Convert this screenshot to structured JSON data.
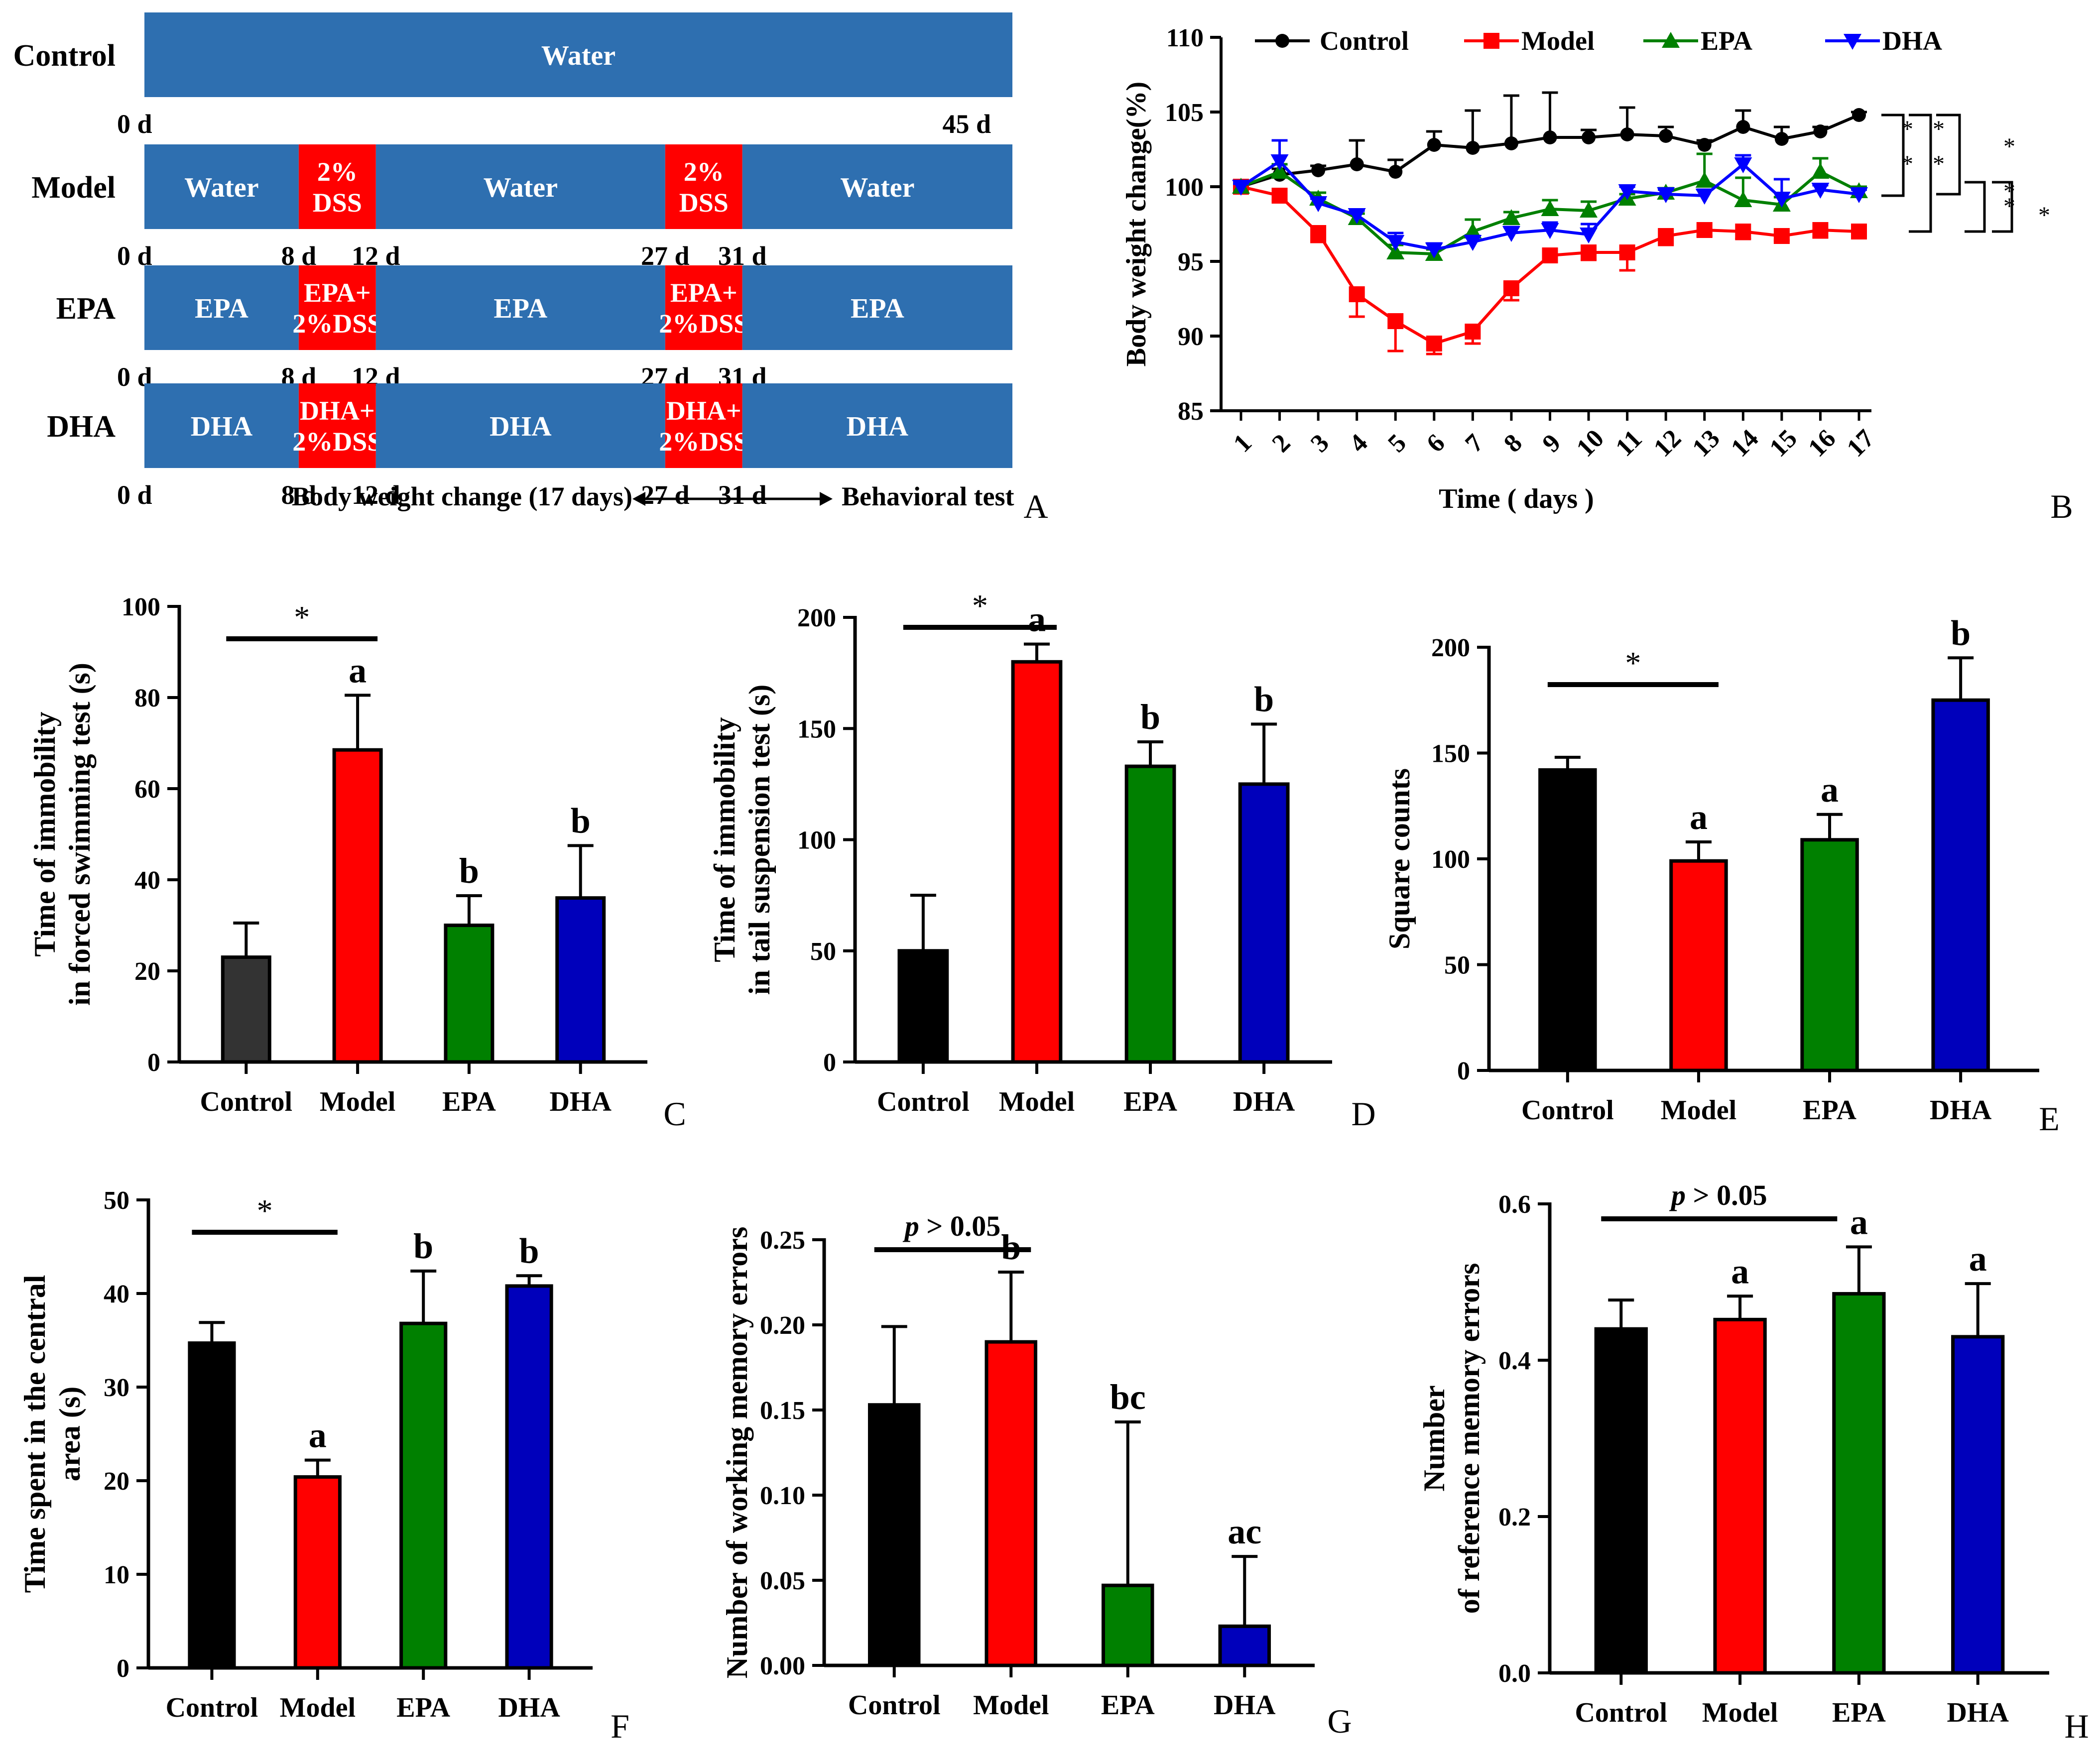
{
  "chart_data": [
    {
      "panel": "A",
      "type": "timeline",
      "note_left": "Body weight change (17 days)",
      "note_right": "Behavioral test",
      "rows": [
        {
          "label": "Control",
          "segments": [
            {
              "text": "Water",
              "color": "#2e6fb0",
              "start": 0,
              "end": 45
            }
          ],
          "ticks": [
            {
              "day": 0,
              "text": "0 d"
            },
            {
              "day": 45,
              "text": "45 d"
            }
          ]
        },
        {
          "label": "Model",
          "segments": [
            {
              "text": "Water",
              "color": "#2e6fb0",
              "start": 0,
              "end": 8
            },
            {
              "text": "2%|DSS",
              "color": "#ff0000",
              "start": 8,
              "end": 12
            },
            {
              "text": "Water",
              "color": "#2e6fb0",
              "start": 12,
              "end": 27
            },
            {
              "text": "2%|DSS",
              "color": "#ff0000",
              "start": 27,
              "end": 31
            },
            {
              "text": "Water",
              "color": "#2e6fb0",
              "start": 31,
              "end": 45
            }
          ],
          "ticks": [
            {
              "day": 0,
              "text": "0 d"
            },
            {
              "day": 8,
              "text": "8 d"
            },
            {
              "day": 12,
              "text": "12 d"
            },
            {
              "day": 27,
              "text": "27 d"
            },
            {
              "day": 31,
              "text": "31 d"
            }
          ]
        },
        {
          "label": "EPA",
          "segments": [
            {
              "text": "EPA",
              "color": "#2e6fb0",
              "start": 0,
              "end": 8
            },
            {
              "text": "EPA+|2%DSS",
              "color": "#ff0000",
              "start": 8,
              "end": 12
            },
            {
              "text": "EPA",
              "color": "#2e6fb0",
              "start": 12,
              "end": 27
            },
            {
              "text": "EPA+|2%DSS",
              "color": "#ff0000",
              "start": 27,
              "end": 31
            },
            {
              "text": "EPA",
              "color": "#2e6fb0",
              "start": 31,
              "end": 45
            }
          ],
          "ticks": [
            {
              "day": 0,
              "text": "0 d"
            },
            {
              "day": 8,
              "text": "8 d"
            },
            {
              "day": 12,
              "text": "12 d"
            },
            {
              "day": 27,
              "text": "27 d"
            },
            {
              "day": 31,
              "text": "31 d"
            }
          ]
        },
        {
          "label": "DHA",
          "segments": [
            {
              "text": "DHA",
              "color": "#2e6fb0",
              "start": 0,
              "end": 8
            },
            {
              "text": "DHA+|2%DSS",
              "color": "#ff0000",
              "start": 8,
              "end": 12
            },
            {
              "text": "DHA",
              "color": "#2e6fb0",
              "start": 12,
              "end": 27
            },
            {
              "text": "DHA+|2%DSS",
              "color": "#ff0000",
              "start": 27,
              "end": 31
            },
            {
              "text": "DHA",
              "color": "#2e6fb0",
              "start": 31,
              "end": 45
            }
          ],
          "ticks": [
            {
              "day": 0,
              "text": "0 d"
            },
            {
              "day": 8,
              "text": "8 d"
            },
            {
              "day": 12,
              "text": "12 d"
            },
            {
              "day": 27,
              "text": "27 d"
            },
            {
              "day": 31,
              "text": "31 d"
            }
          ]
        }
      ]
    },
    {
      "panel": "B",
      "type": "line",
      "xlabel": "Time ( days )",
      "ylabel": "Body weight change(%)",
      "ylim": [
        85,
        110
      ],
      "yticks": [
        85,
        90,
        95,
        100,
        105,
        110
      ],
      "x": [
        1,
        2,
        3,
        4,
        5,
        6,
        7,
        8,
        9,
        10,
        11,
        12,
        13,
        14,
        15,
        16,
        17
      ],
      "series": [
        {
          "name": "Control",
          "color": "#000000",
          "marker": "circle",
          "values": [
            100,
            100.8,
            101.1,
            101.5,
            101.0,
            102.8,
            102.6,
            102.9,
            103.3,
            103.3,
            103.5,
            103.4,
            102.8,
            104.0,
            103.2,
            103.7,
            104.8
          ],
          "errors": [
            0.2,
            0.4,
            0.3,
            1.6,
            0.8,
            0.9,
            2.5,
            3.2,
            3.0,
            0.5,
            1.8,
            0.6,
            0.3,
            1.1,
            0.8,
            0.3,
            0.2
          ]
        },
        {
          "name": "Model",
          "color": "#ff0000",
          "marker": "square",
          "values": [
            100,
            99.4,
            96.9,
            92.8,
            91.0,
            89.5,
            90.3,
            93.2,
            95.4,
            95.6,
            95.6,
            96.7,
            97.1,
            97.0,
            96.7,
            97.1,
            97.0
          ],
          "errors": [
            0.2,
            0.3,
            0.6,
            1.5,
            2.0,
            0.7,
            0.8,
            0.8,
            0.4,
            0.5,
            1.2,
            0.6,
            0.4,
            0.5,
            0.3,
            0.5,
            0.4
          ]
        },
        {
          "name": "EPA",
          "color": "#008000",
          "marker": "triangle-up",
          "values": [
            100,
            101.0,
            99.2,
            97.9,
            95.6,
            95.5,
            97.0,
            97.9,
            98.5,
            98.4,
            99.2,
            99.6,
            100.4,
            99.1,
            98.8,
            101.0,
            99.7
          ],
          "errors": [
            0.2,
            0.5,
            0.4,
            0.3,
            0.5,
            0.3,
            0.8,
            0.4,
            0.6,
            0.6,
            0.3,
            0.3,
            1.8,
            1.5,
            0.5,
            0.9,
            0.3
          ]
        },
        {
          "name": "DHA",
          "color": "#0000ff",
          "marker": "triangle-down",
          "values": [
            100,
            101.7,
            98.9,
            98.1,
            96.3,
            95.8,
            96.3,
            96.9,
            97.1,
            96.8,
            99.7,
            99.5,
            99.4,
            101.5,
            99.2,
            99.8,
            99.5
          ],
          "errors": [
            0.2,
            1.4,
            0.3,
            0.3,
            0.6,
            0.4,
            0.4,
            0.4,
            0.5,
            0.7,
            0.3,
            0.3,
            0.4,
            0.6,
            1.3,
            0.3,
            0.3
          ]
        }
      ],
      "significance": [
        "*",
        "*",
        "*",
        "*",
        "*",
        "*"
      ]
    },
    {
      "panel": "C",
      "type": "bar",
      "ylabel": [
        "Time of immobility",
        "in forced swimming test (s)"
      ],
      "categories": [
        "Control",
        "Model",
        "EPA",
        "DHA"
      ],
      "values": [
        23,
        68.5,
        30,
        36
      ],
      "errors": [
        7.5,
        12,
        6.5,
        11.5
      ],
      "colors": [
        "#333333",
        "#ff0000",
        "#008000",
        "#0000bb"
      ],
      "letters": [
        "",
        "a",
        "b",
        "b"
      ],
      "ylim": [
        0,
        100
      ],
      "yticks": [
        0,
        20,
        40,
        60,
        80,
        100
      ],
      "sig": {
        "text": "*",
        "from": 0,
        "to": 1
      }
    },
    {
      "panel": "D",
      "type": "bar",
      "ylabel": [
        "Time of immobility",
        "in tail suspension test (s)"
      ],
      "categories": [
        "Control",
        "Model",
        "EPA",
        "DHA"
      ],
      "values": [
        50,
        180,
        133,
        125
      ],
      "errors": [
        25,
        8,
        11,
        27
      ],
      "colors": [
        "#000000",
        "#ff0000",
        "#008000",
        "#0000bb"
      ],
      "letters": [
        "",
        "a",
        "b",
        "b"
      ],
      "ylim": [
        0,
        200
      ],
      "yticks": [
        0,
        50,
        100,
        150,
        200
      ],
      "sig": {
        "text": "*",
        "from": 0,
        "to": 1
      }
    },
    {
      "panel": "E",
      "type": "bar",
      "ylabel": [
        "Square counts"
      ],
      "categories": [
        "Control",
        "Model",
        "EPA",
        "DHA"
      ],
      "values": [
        142,
        99,
        109,
        175
      ],
      "errors": [
        6,
        9,
        12,
        20
      ],
      "colors": [
        "#000000",
        "#ff0000",
        "#008000",
        "#0000bb"
      ],
      "letters": [
        "",
        "a",
        "a",
        "b"
      ],
      "ylim": [
        0,
        200
      ],
      "yticks": [
        0,
        50,
        100,
        150,
        200
      ],
      "sig": {
        "text": "*",
        "from": 0,
        "to": 1
      }
    },
    {
      "panel": "F",
      "type": "bar",
      "ylabel": [
        "Time spent in the central",
        "area (s)"
      ],
      "categories": [
        "Control",
        "Model",
        "EPA",
        "DHA"
      ],
      "values": [
        34.7,
        20.4,
        36.8,
        40.8
      ],
      "errors": [
        2.2,
        1.8,
        5.6,
        1.1
      ],
      "colors": [
        "#000000",
        "#ff0000",
        "#008000",
        "#0000bb"
      ],
      "letters": [
        "",
        "a",
        "b",
        "b"
      ],
      "ylim": [
        0,
        50
      ],
      "yticks": [
        0,
        10,
        20,
        30,
        40,
        50
      ],
      "sig": {
        "text": "*",
        "from": 0,
        "to": 1
      }
    },
    {
      "panel": "G",
      "type": "bar",
      "ylabel": [
        "Number of working memory errors"
      ],
      "categories": [
        "Control",
        "Model",
        "EPA",
        "DHA"
      ],
      "values": [
        0.153,
        0.19,
        0.047,
        0.023
      ],
      "errors": [
        0.046,
        0.041,
        0.096,
        0.041
      ],
      "colors": [
        "#000000",
        "#ff0000",
        "#008000",
        "#0000bb"
      ],
      "letters": [
        "",
        "b",
        "bc",
        "ac"
      ],
      "ylim": [
        0,
        0.25
      ],
      "yticks": [
        0.0,
        0.05,
        0.1,
        0.15,
        0.2,
        0.25
      ],
      "decimals": 2,
      "sig": {
        "p": "p",
        "rest": " > 0.05",
        "from": 0,
        "to": 1
      }
    },
    {
      "panel": "H",
      "type": "bar",
      "ylabel": [
        "Number",
        "of reference memory errors"
      ],
      "categories": [
        "Control",
        "Model",
        "EPA",
        "DHA"
      ],
      "values": [
        0.44,
        0.452,
        0.485,
        0.43
      ],
      "errors": [
        0.037,
        0.03,
        0.06,
        0.068
      ],
      "colors": [
        "#000000",
        "#ff0000",
        "#008000",
        "#0000bb"
      ],
      "letters": [
        "",
        "a",
        "a",
        "a"
      ],
      "ylim": [
        0,
        0.6
      ],
      "yticks": [
        0.0,
        0.2,
        0.4,
        0.6
      ],
      "decimals": 1,
      "sig": {
        "p": "p",
        "rest": " > 0.05",
        "from": 0,
        "to": 1.65
      }
    }
  ]
}
